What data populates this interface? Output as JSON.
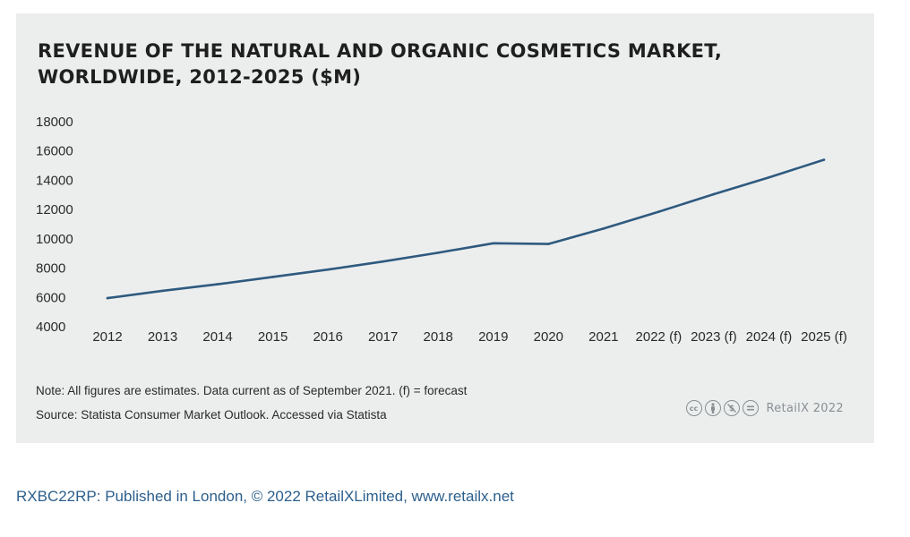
{
  "chart_data": {
    "type": "line",
    "title": "REVENUE OF THE NATURAL AND ORGANIC COSMETICS MARKET, WORLDWIDE, 2012-2025 ($M)",
    "categories": [
      "2012",
      "2013",
      "2014",
      "2015",
      "2016",
      "2017",
      "2018",
      "2019",
      "2020",
      "2021",
      "2022 (f)",
      "2023 (f)",
      "2024 (f)",
      "2025 (f)"
    ],
    "series": [
      {
        "values": [
          5950,
          6450,
          6900,
          7400,
          7900,
          8450,
          9050,
          9700,
          9650,
          10700,
          11850,
          13050,
          14200,
          15400
        ]
      }
    ],
    "y_ticks": [
      "18000",
      "16000",
      "14000",
      "12000",
      "10000",
      "8000",
      "6000",
      "4000"
    ],
    "ylim": [
      4000,
      18000
    ],
    "grid": false,
    "line_color": "#2f5a7f"
  },
  "note": "Note: All figures are estimates. Data current as of September 2021. (f) = forecast",
  "source": "Source: Statista Consumer Market Outlook. Accessed via Statista",
  "license_brand": "RetailX 2022",
  "license_icons": [
    "cc-icon",
    "attribution-icon",
    "noncommercial-icon",
    "noderivs-icon"
  ],
  "footer": "RXBC22RP: Published in London, © 2022 RetailXLimited, www.retailx.net",
  "colors": {
    "panel_bg": "#eceeee",
    "footer_text": "#2c5f8c"
  }
}
